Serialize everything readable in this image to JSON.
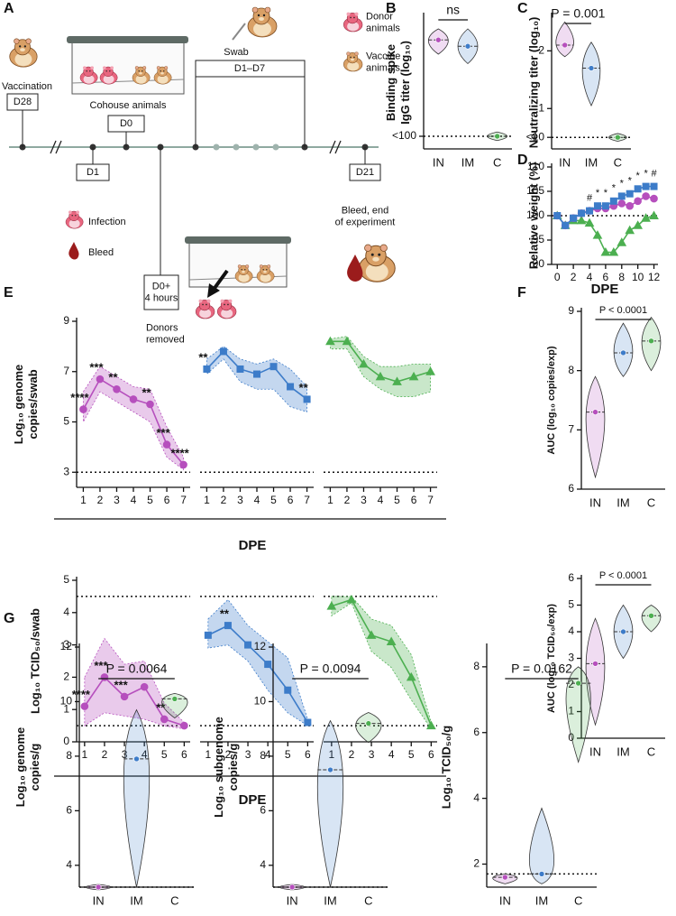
{
  "panel_labels": [
    "A",
    "B",
    "C",
    "D",
    "E",
    "F",
    "G"
  ],
  "diagram": {
    "vaccination": "Vaccination",
    "d28": "D28",
    "cohouse": "Cohouse animals",
    "d0": "D0",
    "swab": "Swab",
    "d1_d7": "D1–D7",
    "d1": "D1",
    "infection": "Infection",
    "bleed": "Bleed",
    "d0_4h": "D0+\n4 hours",
    "donors_removed": "Donors\nremoved",
    "d21": "D21",
    "bleed_end": "Bleed, end\nof experiment",
    "legend_donor": "Donor\nanimals",
    "legend_vaccine": "Vaccine\nanimals"
  },
  "chart_data": [
    {
      "type": "violin",
      "y_label": "Binding spike\nIgG titer (log₁₀)",
      "categories": [
        "IN",
        "IM",
        "C"
      ],
      "colors": [
        "#b64fbd",
        "#3d7cc9",
        "#4caf50"
      ],
      "values": [
        5.05,
        4.85,
        2.0
      ],
      "min": [
        4.6,
        4.3,
        1.95
      ],
      "max": [
        5.4,
        5.4,
        2.05
      ],
      "ylim": [
        1.6,
        5.8
      ],
      "yticks": [
        {
          "value": 2,
          "label": "<100"
        }
      ],
      "ref_lines": [
        2
      ],
      "annotation": "ns",
      "bracket": [
        0,
        1
      ]
    },
    {
      "type": "violin",
      "y_label": "Neutralizing titer (log₁₀)",
      "categories": [
        "IN",
        "IM",
        "C"
      ],
      "colors": [
        "#b64fbd",
        "#3d7cc9",
        "#4caf50"
      ],
      "values": [
        2.1,
        1.7,
        0.5
      ],
      "min": [
        1.9,
        1.05,
        0.48
      ],
      "max": [
        2.5,
        2.15,
        0.52
      ],
      "ylim": [
        0.3,
        2.6
      ],
      "yticks": [
        {
          "value": 0.5,
          "label": "<10"
        },
        1,
        2
      ],
      "ref_lines": [
        0.5
      ],
      "annotation": "P = 0.001",
      "bracket": [
        0,
        1
      ]
    },
    {
      "type": "line",
      "y_label": "Relative weight (%)",
      "x_label": "DPE",
      "x": [
        0,
        1,
        2,
        3,
        4,
        5,
        6,
        7,
        8,
        9,
        10,
        11,
        12
      ],
      "xlim": [
        -0.7,
        12.5
      ],
      "xticks": [
        0,
        2,
        4,
        6,
        8,
        10,
        12
      ],
      "ylim": [
        90,
        110
      ],
      "yticks": [
        90,
        95,
        100,
        105,
        110
      ],
      "ref_lines": [
        100
      ],
      "annotations": [
        null,
        null,
        null,
        null,
        "#",
        "*",
        "*",
        "*",
        "*",
        "*",
        "*",
        "*",
        "#"
      ],
      "series": [
        {
          "color": "#4caf50",
          "marker": "triangle",
          "values": [
            100,
            98,
            99,
            99,
            98.5,
            96,
            92.5,
            92.5,
            94.5,
            97,
            98,
            99.5,
            100
          ]
        },
        {
          "color": "#b64fbd",
          "marker": "circle",
          "values": [
            100,
            98,
            99.5,
            100.5,
            101,
            101.5,
            101.5,
            102,
            102.5,
            102,
            103,
            104,
            103.5
          ]
        },
        {
          "color": "#3d7cc9",
          "marker": "square",
          "values": [
            100,
            98,
            99.5,
            100.5,
            101,
            102,
            102,
            103,
            104,
            104.5,
            105.5,
            106,
            106
          ]
        }
      ]
    },
    {
      "type": "line",
      "y_label": "Log₁₀ genome\ncopies/swab",
      "x": [
        1,
        2,
        3,
        4,
        5,
        6,
        7
      ],
      "xlim": [
        0.6,
        7.4
      ],
      "xticks": [
        1,
        2,
        3,
        4,
        5,
        6,
        7
      ],
      "ylim": [
        2.4,
        9
      ],
      "yticks": [
        3,
        5,
        7,
        9
      ],
      "ref_lines": [
        3
      ],
      "series": [
        {
          "color": "#b64fbd",
          "marker": "circle",
          "values": [
            5.5,
            6.7,
            6.3,
            5.9,
            5.7,
            4.1,
            3.3
          ],
          "band_low": [
            5.0,
            6.2,
            5.8,
            5.4,
            5.0,
            3.6,
            3.1
          ],
          "band_high": [
            6.2,
            7.2,
            6.8,
            6.4,
            6.3,
            4.8,
            3.6
          ],
          "annotations": [
            "****",
            "***",
            "**",
            null,
            "**",
            "***",
            "****"
          ]
        }
      ]
    },
    {
      "type": "line",
      "x_label": "DPE",
      "x": [
        1,
        2,
        3,
        4,
        5,
        6,
        7
      ],
      "xlim": [
        0.6,
        7.4
      ],
      "xticks": [
        1,
        2,
        3,
        4,
        5,
        6,
        7
      ],
      "ylim": [
        2.4,
        9
      ],
      "ref_lines": [
        3
      ],
      "series": [
        {
          "color": "#3d7cc9",
          "marker": "square",
          "values": [
            7.1,
            7.8,
            7.1,
            6.9,
            7.2,
            6.4,
            5.9
          ],
          "band_low": [
            6.9,
            7.5,
            6.6,
            6.3,
            6.3,
            5.6,
            5.4
          ],
          "band_high": [
            7.5,
            8.0,
            7.5,
            7.3,
            7.5,
            7.1,
            6.4
          ],
          "annotations": [
            "**",
            null,
            null,
            null,
            null,
            null,
            "**"
          ]
        }
      ]
    },
    {
      "type": "line",
      "x": [
        1,
        2,
        3,
        4,
        5,
        6,
        7
      ],
      "xlim": [
        0.6,
        7.4
      ],
      "xticks": [
        1,
        2,
        3,
        4,
        5,
        6,
        7
      ],
      "ylim": [
        2.4,
        9
      ],
      "ref_lines": [
        3
      ],
      "series": [
        {
          "color": "#4caf50",
          "marker": "triangle",
          "values": [
            8.2,
            8.2,
            7.3,
            6.8,
            6.6,
            6.8,
            7.0
          ],
          "band_low": [
            7.9,
            7.9,
            6.8,
            6.3,
            6.0,
            6.0,
            6.2
          ],
          "band_high": [
            8.3,
            8.4,
            7.6,
            7.2,
            7.2,
            7.3,
            7.3
          ]
        }
      ]
    },
    {
      "type": "line",
      "y_label": "Log₁₀ TCID₅₀/swab",
      "x": [
        1,
        2,
        3,
        4,
        5,
        6
      ],
      "xlim": [
        0.6,
        6.3
      ],
      "xticks": [
        1,
        2,
        3,
        4,
        5,
        6
      ],
      "ylim": [
        0,
        5
      ],
      "yticks": [
        0,
        1,
        2,
        3,
        4,
        5
      ],
      "ref_lines": [
        0.5,
        4.5
      ],
      "series": [
        {
          "color": "#b64fbd",
          "marker": "circle",
          "values": [
            1.1,
            2.0,
            1.4,
            1.7,
            0.7,
            0.5
          ],
          "band_low": [
            0.5,
            0.9,
            0.8,
            0.7,
            0.5,
            0.4
          ],
          "band_high": [
            2.0,
            3.2,
            2.4,
            2.5,
            1.2,
            0.6
          ],
          "annotations": [
            "****",
            "***",
            "***",
            null,
            "**",
            null
          ]
        }
      ]
    },
    {
      "type": "line",
      "x_label": "DPE",
      "x": [
        1,
        2,
        3,
        4,
        5,
        6
      ],
      "xlim": [
        0.6,
        6.3
      ],
      "xticks": [
        1,
        2,
        3,
        4,
        5,
        6
      ],
      "ylim": [
        0,
        5
      ],
      "ref_lines": [
        0.5,
        4.5
      ],
      "series": [
        {
          "color": "#3d7cc9",
          "marker": "square",
          "values": [
            3.3,
            3.6,
            3.0,
            2.4,
            1.6,
            0.6
          ],
          "band_low": [
            2.9,
            3.0,
            2.5,
            1.6,
            0.9,
            0.5
          ],
          "band_high": [
            3.8,
            4.4,
            3.6,
            3.1,
            2.6,
            0.7
          ],
          "annotations": [
            null,
            "**",
            null,
            null,
            null,
            null
          ]
        }
      ]
    },
    {
      "type": "line",
      "x": [
        1,
        2,
        3,
        4,
        5,
        6
      ],
      "xlim": [
        0.6,
        6.3
      ],
      "xticks": [
        1,
        2,
        3,
        4,
        5,
        6
      ],
      "ylim": [
        0,
        5
      ],
      "ref_lines": [
        0.5,
        4.5
      ],
      "series": [
        {
          "color": "#4caf50",
          "marker": "triangle",
          "values": [
            4.2,
            4.4,
            3.3,
            3.1,
            2.0,
            0.5
          ],
          "band_low": [
            3.9,
            4.3,
            2.8,
            2.3,
            1.3,
            0.4
          ],
          "band_high": [
            4.5,
            4.5,
            3.8,
            3.6,
            2.7,
            0.6
          ]
        }
      ]
    },
    {
      "type": "violin",
      "y_label": "AUC (log₁₀ copies/exp)",
      "categories": [
        "IN",
        "IM",
        "C"
      ],
      "colors": [
        "#b64fbd",
        "#3d7cc9",
        "#4caf50"
      ],
      "values": [
        7.3,
        8.3,
        8.5
      ],
      "min": [
        6.2,
        7.9,
        8.0
      ],
      "max": [
        7.9,
        8.8,
        8.9
      ],
      "ylim": [
        6,
        9
      ],
      "yticks": [
        6,
        7,
        8,
        9
      ],
      "annotation": "P < 0.0001",
      "bracket": [
        0,
        2
      ]
    },
    {
      "type": "violin",
      "y_label": "AUC (log₁₀ TCID₅₀/exp)",
      "categories": [
        "IN",
        "IM",
        "C"
      ],
      "colors": [
        "#b64fbd",
        "#3d7cc9",
        "#4caf50"
      ],
      "values": [
        2.8,
        4.0,
        4.6
      ],
      "min": [
        0.5,
        3.0,
        4.0
      ],
      "max": [
        4.5,
        5.0,
        5.0
      ],
      "ylim": [
        0,
        6
      ],
      "yticks": [
        0,
        1,
        2,
        3,
        4,
        5,
        6
      ],
      "annotation": "P < 0.0001",
      "bracket": [
        0,
        2
      ]
    },
    {
      "type": "violin",
      "y_label": "Log₁₀ genome\ncopies/g",
      "categories": [
        "IN",
        "IM",
        "C"
      ],
      "colors": [
        "#b64fbd",
        "#3d7cc9",
        "#4caf50"
      ],
      "values": [
        3.2,
        7.9,
        10.1
      ],
      "min": [
        3.2,
        3.2,
        9.4
      ],
      "max": [
        3.2,
        9.7,
        10.3
      ],
      "ylim": [
        3.2,
        12
      ],
      "yticks": [
        4,
        6,
        8,
        10,
        12
      ],
      "ref_lines": [
        3.2
      ],
      "annotation": "P = 0.0064",
      "bracket": [
        0,
        2
      ]
    },
    {
      "type": "violin",
      "y_label": "Log₁₀ subgenome\ncopies/g",
      "categories": [
        "IN",
        "IM",
        "C"
      ],
      "colors": [
        "#b64fbd",
        "#3d7cc9",
        "#4caf50"
      ],
      "values": [
        3.2,
        7.5,
        9.2
      ],
      "min": [
        3.2,
        3.2,
        8.5
      ],
      "max": [
        3.2,
        9.3,
        9.6
      ],
      "ylim": [
        3.2,
        12
      ],
      "yticks": [
        4,
        6,
        8,
        10,
        12
      ],
      "ref_lines": [
        3.2
      ],
      "annotation": "P = 0.0094",
      "bracket": [
        0,
        2
      ]
    },
    {
      "type": "violin",
      "y_label": "Log₁₀ TCID₅₀/g",
      "categories": [
        "IN",
        "IM",
        "C"
      ],
      "colors": [
        "#b64fbd",
        "#3d7cc9",
        "#4caf50"
      ],
      "values": [
        1.6,
        1.7,
        7.5
      ],
      "min": [
        1.4,
        1.4,
        5.1
      ],
      "max": [
        1.7,
        3.7,
        8.0
      ],
      "ylim": [
        1.3,
        8.6
      ],
      "yticks": [
        2,
        4,
        6,
        8
      ],
      "ref_lines": [
        1.7
      ],
      "annotation": "P = 0.0162",
      "bracket": [
        0,
        2
      ]
    }
  ]
}
